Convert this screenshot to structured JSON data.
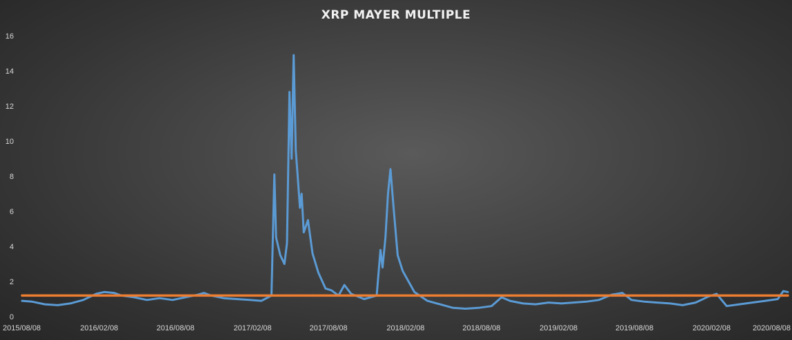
{
  "chart_data": {
    "type": "line",
    "title": "XRP MAYER MULTIPLE",
    "xlabel": "",
    "ylabel": "",
    "ylim": [
      0,
      16
    ],
    "yticks": [
      0,
      2,
      4,
      6,
      8,
      10,
      12,
      14,
      16
    ],
    "xlim": [
      "2015-08-08",
      "2020-08-08"
    ],
    "xticks": [
      "2015/08/08",
      "2016/02/08",
      "2016/08/08",
      "2017/02/08",
      "2017/08/08",
      "2018/02/08",
      "2018/08/08",
      "2019/02/08",
      "2019/08/08",
      "2020/02/08",
      "2020/08/08"
    ],
    "grid": "none",
    "legend": "none",
    "series": [
      {
        "color": "#5b9bd5",
        "points": [
          [
            "2015-08-08",
            0.9
          ],
          [
            "2015-09-01",
            0.85
          ],
          [
            "2015-10-01",
            0.7
          ],
          [
            "2015-11-01",
            0.65
          ],
          [
            "2015-12-01",
            0.75
          ],
          [
            "2016-01-01",
            0.95
          ],
          [
            "2016-02-01",
            1.3
          ],
          [
            "2016-02-20",
            1.4
          ],
          [
            "2016-03-15",
            1.35
          ],
          [
            "2016-04-01",
            1.2
          ],
          [
            "2016-05-01",
            1.1
          ],
          [
            "2016-06-01",
            0.95
          ],
          [
            "2016-07-01",
            1.05
          ],
          [
            "2016-08-01",
            0.95
          ],
          [
            "2016-09-01",
            1.1
          ],
          [
            "2016-10-01",
            1.25
          ],
          [
            "2016-10-15",
            1.35
          ],
          [
            "2016-11-01",
            1.2
          ],
          [
            "2016-12-01",
            1.05
          ],
          [
            "2017-01-01",
            1.0
          ],
          [
            "2017-02-01",
            0.95
          ],
          [
            "2017-03-01",
            0.9
          ],
          [
            "2017-03-25",
            1.2
          ],
          [
            "2017-04-01",
            8.1
          ],
          [
            "2017-04-05",
            4.5
          ],
          [
            "2017-04-15",
            3.5
          ],
          [
            "2017-04-25",
            3.0
          ],
          [
            "2017-05-01",
            4.2
          ],
          [
            "2017-05-07",
            12.8
          ],
          [
            "2017-05-12",
            9.0
          ],
          [
            "2017-05-17",
            14.9
          ],
          [
            "2017-05-22",
            9.5
          ],
          [
            "2017-06-01",
            6.2
          ],
          [
            "2017-06-05",
            7.0
          ],
          [
            "2017-06-10",
            4.8
          ],
          [
            "2017-06-20",
            5.5
          ],
          [
            "2017-07-01",
            3.6
          ],
          [
            "2017-07-15",
            2.5
          ],
          [
            "2017-08-01",
            1.6
          ],
          [
            "2017-08-15",
            1.5
          ],
          [
            "2017-09-01",
            1.2
          ],
          [
            "2017-09-15",
            1.8
          ],
          [
            "2017-10-01",
            1.3
          ],
          [
            "2017-11-01",
            1.0
          ],
          [
            "2017-12-01",
            1.2
          ],
          [
            "2017-12-10",
            3.8
          ],
          [
            "2017-12-15",
            2.8
          ],
          [
            "2017-12-22",
            4.5
          ],
          [
            "2017-12-28",
            7.0
          ],
          [
            "2018-01-03",
            8.4
          ],
          [
            "2018-01-10",
            6.3
          ],
          [
            "2018-01-20",
            3.5
          ],
          [
            "2018-02-01",
            2.6
          ],
          [
            "2018-02-15",
            2.0
          ],
          [
            "2018-03-01",
            1.4
          ],
          [
            "2018-04-01",
            0.9
          ],
          [
            "2018-05-01",
            0.7
          ],
          [
            "2018-06-01",
            0.5
          ],
          [
            "2018-07-01",
            0.45
          ],
          [
            "2018-08-01",
            0.5
          ],
          [
            "2018-09-01",
            0.6
          ],
          [
            "2018-09-25",
            1.1
          ],
          [
            "2018-10-15",
            0.9
          ],
          [
            "2018-11-15",
            0.75
          ],
          [
            "2018-12-15",
            0.7
          ],
          [
            "2019-01-15",
            0.8
          ],
          [
            "2019-02-15",
            0.75
          ],
          [
            "2019-03-15",
            0.8
          ],
          [
            "2019-04-15",
            0.85
          ],
          [
            "2019-05-15",
            0.95
          ],
          [
            "2019-06-15",
            1.25
          ],
          [
            "2019-07-10",
            1.35
          ],
          [
            "2019-08-01",
            0.95
          ],
          [
            "2019-09-01",
            0.85
          ],
          [
            "2019-10-01",
            0.8
          ],
          [
            "2019-11-01",
            0.75
          ],
          [
            "2019-12-01",
            0.65
          ],
          [
            "2020-01-01",
            0.8
          ],
          [
            "2020-02-01",
            1.15
          ],
          [
            "2020-02-20",
            1.3
          ],
          [
            "2020-03-15",
            0.6
          ],
          [
            "2020-04-15",
            0.7
          ],
          [
            "2020-05-15",
            0.8
          ],
          [
            "2020-06-15",
            0.9
          ],
          [
            "2020-07-15",
            1.0
          ],
          [
            "2020-07-28",
            1.45
          ],
          [
            "2020-08-08",
            1.4
          ]
        ]
      },
      {
        "color": "#ed7d31",
        "points": [
          [
            "2015-08-08",
            1.2
          ],
          [
            "2020-08-08",
            1.2
          ]
        ]
      }
    ]
  }
}
